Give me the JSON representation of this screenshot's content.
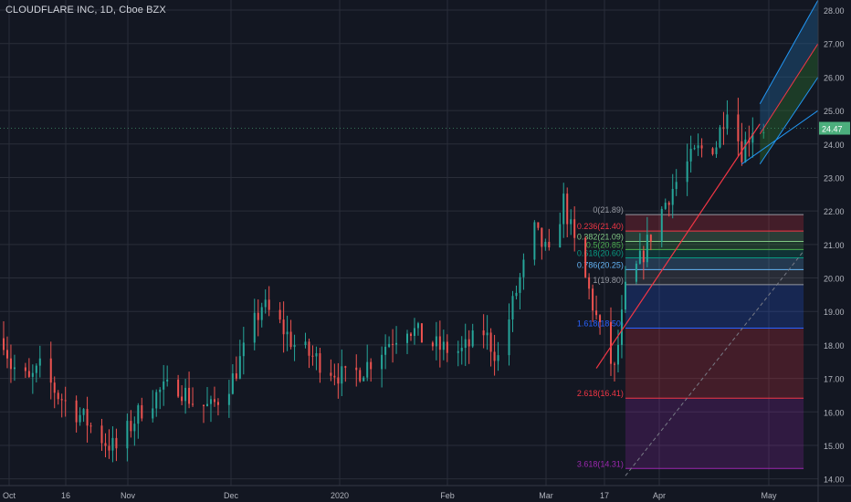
{
  "header": {
    "title": "CLOUDFLARE INC, 1D, Cboe BZX"
  },
  "colors": {
    "background": "#131722",
    "grid": "#2a2e39",
    "up": "#26a69a",
    "down": "#ef5350",
    "axis_text": "#b2b5be",
    "price_badge": "#4caf7d",
    "trendline": "#f23645",
    "channel_fill": "#1e5a8c",
    "channel_mid": "#4caf50"
  },
  "chart_data": {
    "type": "candlestick",
    "title": "CLOUDFLARE INC, 1D, Cboe BZX",
    "y_axis": {
      "position": "right",
      "ticks": [
        "14.00",
        "15.00",
        "16.00",
        "17.00",
        "18.00",
        "19.00",
        "20.00",
        "21.00",
        "22.00",
        "23.00",
        "24.00",
        "25.00",
        "26.00",
        "27.00",
        "28.00"
      ],
      "range": [
        13.8,
        28.3
      ]
    },
    "x_axis": {
      "labels": [
        "Oct",
        "16",
        "Nov",
        "Dec",
        "2020",
        "Feb",
        "Mar",
        "17",
        "Apr",
        "May"
      ],
      "range": [
        "2019-09-30",
        "2020-05-12"
      ]
    },
    "last_price": "24.47",
    "price_series": [
      [
        "2019-10-01",
        18.2
      ],
      [
        "2019-10-03",
        17.4
      ],
      [
        "2019-10-08",
        16.9
      ],
      [
        "2019-10-11",
        17.3
      ],
      [
        "2019-10-16",
        16.5
      ],
      [
        "2019-10-21",
        16.0
      ],
      [
        "2019-10-24",
        15.7
      ],
      [
        "2019-10-29",
        15.1
      ],
      [
        "2019-11-01",
        14.9
      ],
      [
        "2019-11-05",
        15.6
      ],
      [
        "2019-11-08",
        16.1
      ],
      [
        "2019-11-13",
        16.6
      ],
      [
        "2019-11-18",
        16.8
      ],
      [
        "2019-11-22",
        16.3
      ],
      [
        "2019-11-27",
        16.1
      ],
      [
        "2019-12-03",
        17.0
      ],
      [
        "2019-12-06",
        17.8
      ],
      [
        "2019-12-11",
        19.2
      ],
      [
        "2019-12-16",
        18.6
      ],
      [
        "2019-12-20",
        18.0
      ],
      [
        "2019-12-27",
        17.5
      ],
      [
        "2020-01-03",
        17.0
      ],
      [
        "2020-01-08",
        17.3
      ],
      [
        "2020-01-14",
        18.0
      ],
      [
        "2020-01-20",
        18.6
      ],
      [
        "2020-01-24",
        18.2
      ],
      [
        "2020-01-29",
        17.9
      ],
      [
        "2020-02-04",
        17.8
      ],
      [
        "2020-02-10",
        18.4
      ],
      [
        "2020-02-14",
        17.6
      ],
      [
        "2020-02-19",
        19.6
      ],
      [
        "2020-02-24",
        21.4
      ],
      [
        "2020-02-28",
        20.6
      ],
      [
        "2020-03-03",
        22.3
      ],
      [
        "2020-03-06",
        21.0
      ],
      [
        "2020-03-10",
        19.6
      ],
      [
        "2020-03-13",
        18.4
      ],
      [
        "2020-03-17",
        17.2
      ],
      [
        "2020-03-20",
        19.6
      ],
      [
        "2020-03-24",
        20.5
      ],
      [
        "2020-03-27",
        21.3
      ],
      [
        "2020-04-01",
        22.5
      ],
      [
        "2020-04-06",
        23.4
      ],
      [
        "2020-04-09",
        23.8
      ],
      [
        "2020-04-14",
        24.0
      ],
      [
        "2020-04-17",
        25.2
      ],
      [
        "2020-04-21",
        23.8
      ],
      [
        "2020-04-24",
        24.5
      ],
      [
        "2020-04-28",
        24.47
      ]
    ],
    "fibonacci": [
      {
        "label": "0(21.89)",
        "level": 21.89,
        "color": "#9598a1"
      },
      {
        "label": "0.236(21.40)",
        "level": 21.4,
        "color": "#f23645"
      },
      {
        "label": "0.382(21.09)",
        "level": 21.09,
        "color": "#81c784"
      },
      {
        "label": "0.5(20.85)",
        "level": 20.85,
        "color": "#4caf50"
      },
      {
        "label": "0.618(20.60)",
        "level": 20.6,
        "color": "#089981"
      },
      {
        "label": "0.786(20.25)",
        "level": 20.25,
        "color": "#64b5f6"
      },
      {
        "label": "1(19.80)",
        "level": 19.8,
        "color": "#9598a1"
      },
      {
        "label": "1.618(18.50)",
        "level": 18.5,
        "color": "#2962ff"
      },
      {
        "label": "2.618(16.41)",
        "level": 16.41,
        "color": "#f23645"
      },
      {
        "label": "3.618(14.31)",
        "level": 14.31,
        "color": "#9c27b0"
      }
    ],
    "fib_start_date": "2020-03-20",
    "fib_end_date": "2020-05-08",
    "trendline": [
      [
        "2020-03-12",
        17.3
      ],
      [
        "2020-04-26",
        24.6
      ]
    ],
    "channel": {
      "mid": [
        [
          "2020-04-26",
          24.3
        ],
        [
          "2020-05-12",
          27.0
        ]
      ],
      "upper": [
        [
          "2020-04-26",
          25.2
        ],
        [
          "2020-05-12",
          28.3
        ]
      ],
      "lower": [
        [
          "2020-04-26",
          23.4
        ],
        [
          "2020-05-12",
          26.0
        ]
      ]
    },
    "grid": true
  }
}
